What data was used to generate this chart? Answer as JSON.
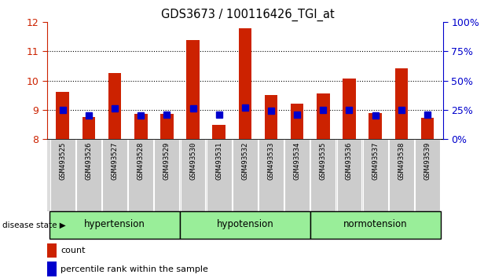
{
  "title": "GDS3673 / 100116426_TGI_at",
  "samples": [
    "GSM493525",
    "GSM493526",
    "GSM493527",
    "GSM493528",
    "GSM493529",
    "GSM493530",
    "GSM493531",
    "GSM493532",
    "GSM493533",
    "GSM493534",
    "GSM493535",
    "GSM493536",
    "GSM493537",
    "GSM493538",
    "GSM493539"
  ],
  "count_values": [
    9.62,
    8.75,
    10.25,
    8.87,
    8.87,
    11.38,
    8.48,
    11.8,
    9.52,
    9.22,
    9.55,
    10.08,
    8.88,
    10.42,
    8.72
  ],
  "percentile_values": [
    25,
    20,
    26,
    20,
    21,
    26,
    21,
    27,
    24,
    21,
    25,
    25,
    20,
    25,
    21
  ],
  "bar_color": "#cc2200",
  "percentile_color": "#0000cc",
  "ymin": 8,
  "ymax": 12,
  "y2min": 0,
  "y2max": 100,
  "yticks": [
    8,
    9,
    10,
    11,
    12
  ],
  "y2ticks": [
    0,
    25,
    50,
    75,
    100
  ],
  "groups": [
    {
      "label": "hypertension",
      "start": 0,
      "end": 4
    },
    {
      "label": "hypotension",
      "start": 5,
      "end": 9
    },
    {
      "label": "normotension",
      "start": 10,
      "end": 14
    }
  ],
  "group_color": "#99ee99",
  "left_axis_color": "#cc2200",
  "right_axis_color": "#0000cc",
  "disease_state_label": "disease state",
  "legend_count": "count",
  "legend_percentile": "percentile rank within the sample",
  "bar_width": 0.5,
  "percentile_marker_size": 6
}
